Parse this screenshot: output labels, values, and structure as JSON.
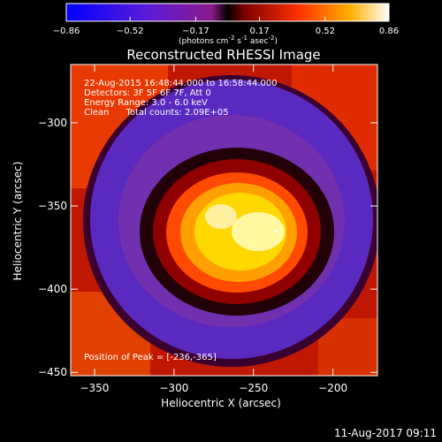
{
  "chart_data": {
    "type": "heatmap",
    "title": "Reconstructed RHESSI Image",
    "xlabel": "Heliocentric X (arcsec)",
    "ylabel": "Heliocentric Y (arcsec)",
    "xlim": [
      -365,
      -172
    ],
    "ylim": [
      -452,
      -265
    ],
    "x_ticks": [
      -350,
      -300,
      -250,
      -200
    ],
    "y_ticks": [
      -450,
      -400,
      -350,
      -300
    ],
    "colorbar": {
      "range": [
        -0.86,
        0.86
      ],
      "ticks": [
        "-0.86",
        "-0.52",
        "-0.17",
        "0.17",
        "0.52",
        "0.86"
      ],
      "unit_main": "(photons cm",
      "unit_exp1": "-2",
      "unit_mid1": " s",
      "unit_exp2": "-1",
      "unit_mid2": " asec",
      "unit_exp3": "-2",
      "unit_end": ")"
    },
    "peak_position": [
      -236,
      -365
    ],
    "annotations": [
      "22-Aug-2015 16:48:44.000 to 16:58:44.000",
      "Detectors: 3F 5F 6F 7F, Att 0",
      "Energy Range: 3.0 - 6.0 keV",
      "Clean      Total counts: 2.09E+05"
    ],
    "peak_label": "Position of Peak = [-236,-365]",
    "timestamp": "11-Aug-2017 09:11"
  }
}
